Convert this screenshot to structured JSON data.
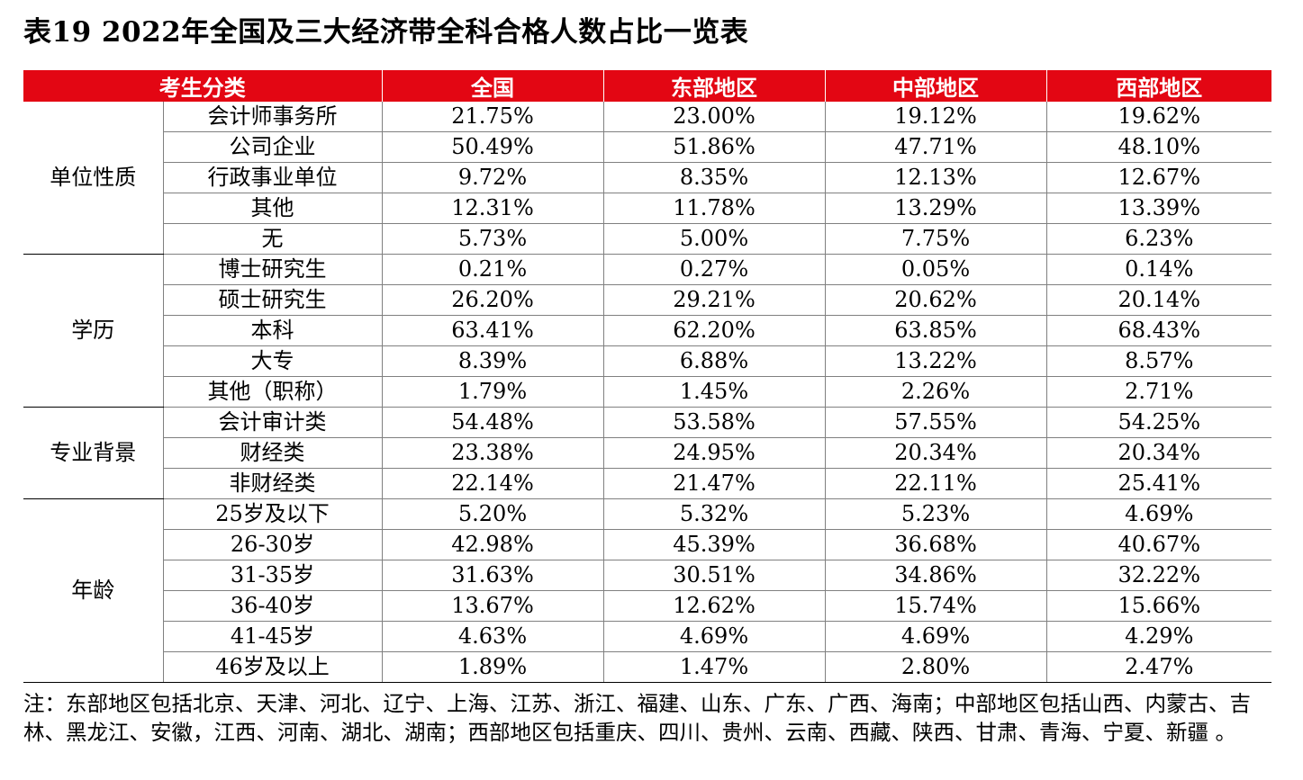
{
  "title": "表19  2022年全国及三大经济带全科合格人数占比一览表",
  "columns": [
    "考生分类",
    "全国",
    "东部地区",
    "中部地区",
    "西部地区"
  ],
  "groups": [
    {
      "label": "单位性质",
      "rows": [
        {
          "label": "会计师事务所",
          "values": [
            "21.75%",
            "23.00%",
            "19.12%",
            "19.62%"
          ]
        },
        {
          "label": "公司企业",
          "values": [
            "50.49%",
            "51.86%",
            "47.71%",
            "48.10%"
          ]
        },
        {
          "label": "行政事业单位",
          "values": [
            "9.72%",
            "8.35%",
            "12.13%",
            "12.67%"
          ]
        },
        {
          "label": "其他",
          "values": [
            "12.31%",
            "11.78%",
            "13.29%",
            "13.39%"
          ]
        },
        {
          "label": "无",
          "values": [
            "5.73%",
            "5.00%",
            "7.75%",
            "6.23%"
          ]
        }
      ]
    },
    {
      "label": "学历",
      "rows": [
        {
          "label": "博士研究生",
          "values": [
            "0.21%",
            "0.27%",
            "0.05%",
            "0.14%"
          ]
        },
        {
          "label": "硕士研究生",
          "values": [
            "26.20%",
            "29.21%",
            "20.62%",
            "20.14%"
          ]
        },
        {
          "label": "本科",
          "values": [
            "63.41%",
            "62.20%",
            "63.85%",
            "68.43%"
          ]
        },
        {
          "label": "大专",
          "values": [
            "8.39%",
            "6.88%",
            "13.22%",
            "8.57%"
          ]
        },
        {
          "label": "其他（职称）",
          "values": [
            "1.79%",
            "1.45%",
            "2.26%",
            "2.71%"
          ]
        }
      ]
    },
    {
      "label": "专业背景",
      "rows": [
        {
          "label": "会计审计类",
          "values": [
            "54.48%",
            "53.58%",
            "57.55%",
            "54.25%"
          ]
        },
        {
          "label": "财经类",
          "values": [
            "23.38%",
            "24.95%",
            "20.34%",
            "20.34%"
          ]
        },
        {
          "label": "非财经类",
          "values": [
            "22.14%",
            "21.47%",
            "22.11%",
            "25.41%"
          ]
        }
      ]
    },
    {
      "label": "年龄",
      "rows": [
        {
          "label": "25岁及以下",
          "values": [
            "5.20%",
            "5.32%",
            "5.23%",
            "4.69%"
          ]
        },
        {
          "label": "26-30岁",
          "values": [
            "42.98%",
            "45.39%",
            "36.68%",
            "40.67%"
          ]
        },
        {
          "label": "31-35岁",
          "values": [
            "31.63%",
            "30.51%",
            "34.86%",
            "32.22%"
          ]
        },
        {
          "label": "36-40岁",
          "values": [
            "13.67%",
            "12.62%",
            "15.74%",
            "15.66%"
          ]
        },
        {
          "label": "41-45岁",
          "values": [
            "4.63%",
            "4.69%",
            "4.69%",
            "4.29%"
          ]
        },
        {
          "label": "46岁及以上",
          "values": [
            "1.89%",
            "1.47%",
            "2.80%",
            "2.47%"
          ]
        }
      ]
    }
  ],
  "note": "注：东部地区包括北京、天津、河北、辽宁、上海、江苏、浙江、福建、山东、广东、广西、海南；中部地区包括山西、内蒙古、吉林、黑龙江、安徽，江西、河南、湖北、湖南；西部地区包括重庆、四川、贵州、云南、西藏、陕西、甘肃、青海、宁夏、新疆 。",
  "colors": {
    "header_bg": "#e30613",
    "header_text": "#ffffff"
  }
}
